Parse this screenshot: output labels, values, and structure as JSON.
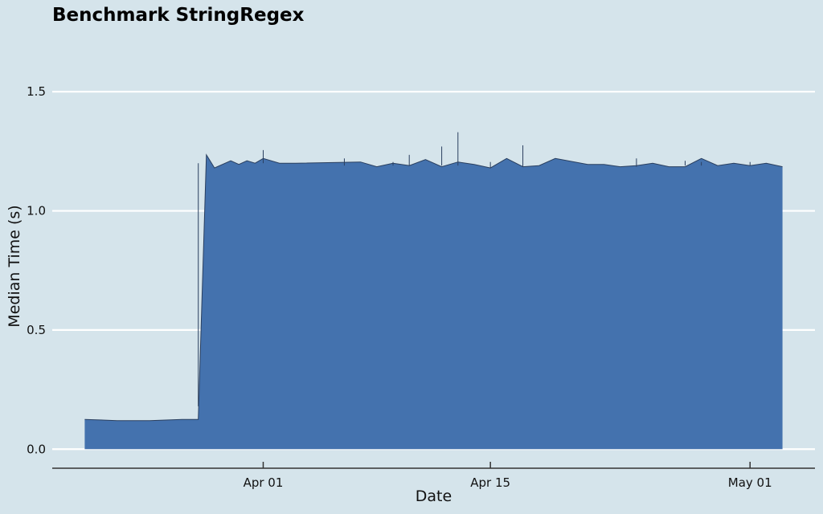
{
  "chart_data": {
    "type": "area",
    "title": "Benchmark StringRegex",
    "xlabel": "Date",
    "ylabel": "Median Time (s)",
    "x_axis": "date",
    "xlim": [
      "2024-03-19",
      "2024-05-05"
    ],
    "ylim": [
      -0.08,
      1.75
    ],
    "yticks": [
      {
        "value": 0.0,
        "label": "0.0"
      },
      {
        "value": 0.5,
        "label": "0.5"
      },
      {
        "value": 1.0,
        "label": "1.0"
      },
      {
        "value": 1.5,
        "label": "1.5"
      }
    ],
    "xticks": [
      {
        "value": "2024-04-01",
        "label": "Apr 01"
      },
      {
        "value": "2024-04-15",
        "label": "Apr 15"
      },
      {
        "value": "2024-05-01",
        "label": "May 01"
      }
    ],
    "grid": "horizontal",
    "fill_color": "#4472ae",
    "line_color": "#2a3f5f",
    "background_color": "#d5e4eb",
    "series": [
      {
        "x": [
          "2024-03-21",
          "2024-03-23",
          "2024-03-25",
          "2024-03-27",
          "2024-03-28",
          "2024-03-28T12:00",
          "2024-03-29",
          "2024-03-30",
          "2024-03-30T12:00",
          "2024-03-31",
          "2024-03-31T12:00",
          "2024-04-01",
          "2024-04-02",
          "2024-04-03",
          "2024-04-07",
          "2024-04-08",
          "2024-04-09",
          "2024-04-10",
          "2024-04-11",
          "2024-04-12",
          "2024-04-13",
          "2024-04-14",
          "2024-04-15",
          "2024-04-16",
          "2024-04-17",
          "2024-04-18",
          "2024-04-19",
          "2024-04-21",
          "2024-04-22",
          "2024-04-23",
          "2024-04-24",
          "2024-04-25",
          "2024-04-26",
          "2024-04-27",
          "2024-04-28",
          "2024-04-29",
          "2024-04-30",
          "2024-05-01",
          "2024-05-02",
          "2024-05-03"
        ],
        "y": [
          0.125,
          0.12,
          0.12,
          0.125,
          0.125,
          1.235,
          1.18,
          1.21,
          1.195,
          1.21,
          1.2,
          1.22,
          1.2,
          1.2,
          1.205,
          1.185,
          1.2,
          1.19,
          1.215,
          1.185,
          1.205,
          1.195,
          1.18,
          1.22,
          1.185,
          1.19,
          1.22,
          1.195,
          1.195,
          1.185,
          1.19,
          1.2,
          1.185,
          1.185,
          1.22,
          1.19,
          1.2,
          1.19,
          1.2,
          1.185
        ]
      }
    ],
    "spikes": [
      {
        "x": "2024-03-28",
        "low": 0.18,
        "high": 1.2
      },
      {
        "x": "2024-04-01",
        "low": 1.2,
        "high": 1.255
      },
      {
        "x": "2024-04-06",
        "low": 1.19,
        "high": 1.22
      },
      {
        "x": "2024-04-09",
        "low": 1.19,
        "high": 1.205
      },
      {
        "x": "2024-04-10",
        "low": 1.19,
        "high": 1.235
      },
      {
        "x": "2024-04-12",
        "low": 1.19,
        "high": 1.27
      },
      {
        "x": "2024-04-13",
        "low": 1.19,
        "high": 1.33
      },
      {
        "x": "2024-04-15",
        "low": 1.18,
        "high": 1.205
      },
      {
        "x": "2024-04-17",
        "low": 1.185,
        "high": 1.275
      },
      {
        "x": "2024-04-24",
        "low": 1.185,
        "high": 1.22
      },
      {
        "x": "2024-04-27",
        "low": 1.19,
        "high": 1.21
      },
      {
        "x": "2024-04-28",
        "low": 1.19,
        "high": 1.205
      },
      {
        "x": "2024-05-01",
        "low": 1.19,
        "high": 1.205
      }
    ]
  }
}
